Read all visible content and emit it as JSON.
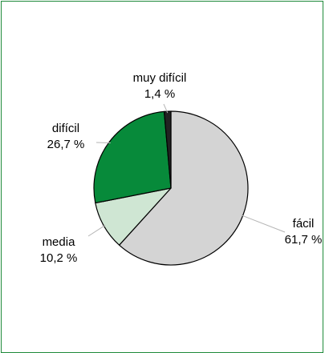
{
  "chart_data": {
    "type": "pie",
    "categories": [
      "fácil",
      "media",
      "difícil",
      "muy difícil"
    ],
    "values": [
      61.7,
      10.2,
      26.7,
      1.4
    ],
    "value_labels": [
      "61,7 %",
      "10,2 %",
      "26,7 %",
      "1,4 %"
    ],
    "colors": [
      "#d4d4d4",
      "#cfe6d3",
      "#078a3a",
      "#222222"
    ],
    "title": "",
    "legend": "none",
    "start_angle_deg": 0,
    "direction": "clockwise"
  }
}
